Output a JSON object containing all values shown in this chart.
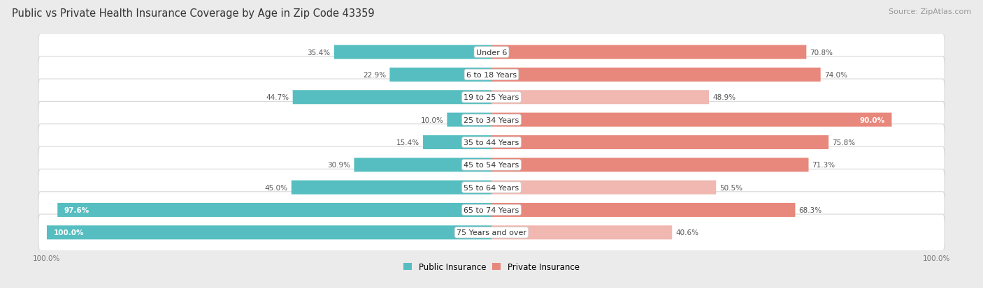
{
  "title": "Public vs Private Health Insurance Coverage by Age in Zip Code 43359",
  "source": "Source: ZipAtlas.com",
  "categories": [
    "Under 6",
    "6 to 18 Years",
    "19 to 25 Years",
    "25 to 34 Years",
    "35 to 44 Years",
    "45 to 54 Years",
    "55 to 64 Years",
    "65 to 74 Years",
    "75 Years and over"
  ],
  "public_values": [
    35.4,
    22.9,
    44.7,
    10.0,
    15.4,
    30.9,
    45.0,
    97.6,
    100.0
  ],
  "private_values": [
    70.8,
    74.0,
    48.9,
    90.0,
    75.8,
    71.3,
    50.5,
    68.3,
    40.6
  ],
  "public_color": "#56bec0",
  "private_colors": [
    "#e8877b",
    "#e8877b",
    "#f0b8b0",
    "#e8877b",
    "#e8877b",
    "#e8877b",
    "#f0b8b0",
    "#e8877b",
    "#f0b8b0"
  ],
  "bg_color": "#ebebeb",
  "row_bg_color": "#ffffff",
  "row_outline_color": "#d8d8d8",
  "title_fontsize": 10.5,
  "source_fontsize": 8,
  "label_fontsize": 8,
  "value_fontsize": 7.5,
  "legend_fontsize": 8.5,
  "max_value": 100.0
}
